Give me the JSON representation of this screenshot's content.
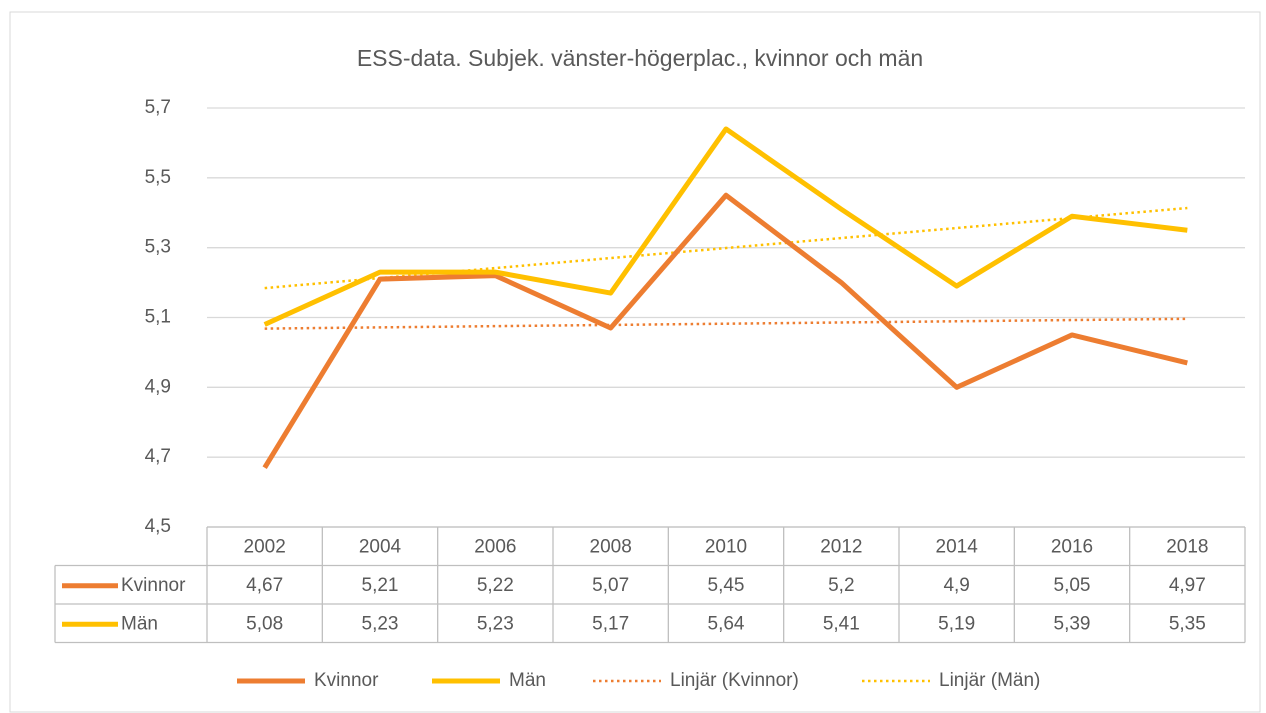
{
  "chart_data": {
    "type": "line",
    "title": "ESS-data. Subjek. vänster-högerplac., kvinnor och män",
    "categories": [
      "2002",
      "2004",
      "2006",
      "2008",
      "2010",
      "2012",
      "2014",
      "2016",
      "2018"
    ],
    "series": [
      {
        "name": "Kvinnor",
        "color": "#ed7d31",
        "values": [
          4.67,
          5.21,
          5.22,
          5.07,
          5.45,
          5.2,
          4.9,
          5.05,
          4.97
        ],
        "value_labels": [
          "4,67",
          "5,21",
          "5,22",
          "5,07",
          "5,45",
          "5,2",
          "4,9",
          "5,05",
          "4,97"
        ]
      },
      {
        "name": "Män",
        "color": "#ffc000",
        "values": [
          5.08,
          5.23,
          5.23,
          5.17,
          5.64,
          5.41,
          5.19,
          5.39,
          5.35
        ],
        "value_labels": [
          "5,08",
          "5,23",
          "5,23",
          "5,17",
          "5,64",
          "5,41",
          "5,19",
          "5,39",
          "5,35"
        ]
      }
    ],
    "trendlines": [
      {
        "name": "Linjär (Kvinnor)",
        "series": 0,
        "kind": "linear",
        "style": "dotted"
      },
      {
        "name": "Linjär (Män)",
        "series": 1,
        "kind": "linear",
        "style": "dotted"
      }
    ],
    "ylim": [
      4.5,
      5.7
    ],
    "yticks": [
      {
        "value": 4.5,
        "label": "4,5"
      },
      {
        "value": 4.7,
        "label": "4,7"
      },
      {
        "value": 4.9,
        "label": "4,9"
      },
      {
        "value": 5.1,
        "label": "5,1"
      },
      {
        "value": 5.3,
        "label": "5,3"
      },
      {
        "value": 5.5,
        "label": "5,5"
      },
      {
        "value": 5.7,
        "label": "5,7"
      }
    ],
    "grid": true,
    "data_table": true,
    "legend": "bottom"
  }
}
